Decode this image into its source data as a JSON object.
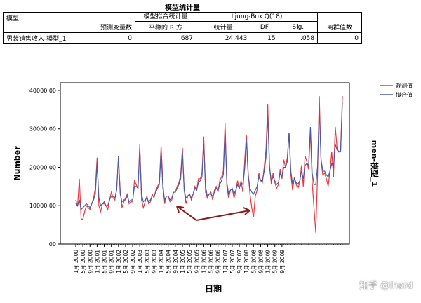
{
  "table": {
    "title": "模型统计量",
    "headers": {
      "model": "模型",
      "predictors": "预测变量数",
      "fit_group": "模型拟合统计量",
      "stationary_r2": "平稳的 R 方",
      "ljung_group": "Ljung-Box Q(18)",
      "statistic": "统计量",
      "df": "DF",
      "sig": "Sig.",
      "outliers": "离群值数"
    },
    "row": {
      "model": "男装销售收入-模型_1",
      "predictors": "0",
      "stationary_r2": ".687",
      "statistic": "24.443",
      "df": "15",
      "sig": ".058",
      "outliers": "0"
    }
  },
  "chart_data": {
    "type": "line",
    "ylabel": "Number",
    "xlabel": "日期",
    "right_label": "men-模型_1",
    "ylim": [
      0,
      42000
    ],
    "yticks": [
      "40000.00",
      "30000.00",
      "20000.00",
      "10000.00",
      ".00"
    ],
    "xticks": [
      "1月 2000",
      "5月 2000",
      "9月 2000",
      "1月 2001",
      "5月 2001",
      "9月 2001",
      "1月 2002",
      "5月 2002",
      "9月 2002",
      "1月 2003",
      "5月 2003",
      "9月 2003",
      "1月 2004",
      "5月 2004",
      "9月 2004",
      "1月 2005",
      "5月 2005",
      "9月 2005",
      "1月 2006",
      "5月 2006",
      "9月 2006",
      "1月 2007",
      "5月 2007",
      "9月 2007",
      "1月 2008",
      "5月 2008",
      "9月 2008",
      "1月 2009",
      "5月 2009",
      "9月 2009"
    ],
    "legend_position": "top-right",
    "series": [
      {
        "name": "观测值",
        "color": "#e8393f",
        "values": [
          11500,
          9800,
          17000,
          6500,
          6500,
          8500,
          10000,
          9500,
          9000,
          10500,
          12000,
          14500,
          22500,
          10000,
          8500,
          10500,
          10500,
          10000,
          9000,
          11500,
          13500,
          12000,
          11500,
          14500,
          22000,
          14000,
          9500,
          11000,
          12000,
          13000,
          10500,
          11000,
          11000,
          16500,
          15500,
          14500,
          26000,
          11500,
          9500,
          11000,
          12500,
          10500,
          11000,
          13000,
          12000,
          14000,
          15000,
          16000,
          25500,
          16000,
          10500,
          12500,
          12500,
          11000,
          11500,
          13500,
          13500,
          15000,
          16000,
          18000,
          25000,
          14000,
          10500,
          12500,
          13000,
          11500,
          13000,
          15000,
          14000,
          17000,
          17000,
          18500,
          28000,
          13500,
          12000,
          13000,
          13500,
          11500,
          14000,
          15000,
          13500,
          16500,
          17500,
          19000,
          31500,
          15000,
          12000,
          14000,
          14500,
          12000,
          13500,
          16500,
          14500,
          16500,
          13500,
          21500,
          28500,
          18500,
          13000,
          9500,
          7000,
          12500,
          14000,
          18500,
          16500,
          16000,
          20000,
          24500,
          36500,
          20500,
          15500,
          18500,
          16000,
          14500,
          15500,
          19500,
          17000,
          22000,
          20000,
          22500,
          29000,
          18000,
          14000,
          17500,
          15500,
          14500,
          16000,
          20500,
          15000,
          23000,
          21500,
          19500,
          29500,
          16000,
          9500,
          3000,
          17500,
          38500,
          21500,
          18000,
          18500,
          17000,
          15000,
          19000,
          24000,
          17500,
          30500,
          25000,
          24000,
          24500,
          38500
        ],
        "row": 0
      },
      {
        "name": "拟合值",
        "color": "#4a5ca8",
        "values": [
          10500,
          10000,
          11500,
          9000,
          9500,
          10000,
          10500,
          10000,
          9500,
          10500,
          11500,
          13000,
          21000,
          12000,
          10000,
          10500,
          11000,
          10000,
          10000,
          11500,
          12500,
          12500,
          12000,
          14000,
          23000,
          13000,
          11000,
          11500,
          11500,
          12500,
          11000,
          11500,
          11500,
          15000,
          15000,
          14500,
          24500,
          13000,
          11000,
          11500,
          12000,
          11000,
          11500,
          12500,
          12500,
          13500,
          14500,
          15500,
          24000,
          14500,
          11500,
          12500,
          12500,
          11500,
          12000,
          13500,
          13500,
          14500,
          15500,
          17000,
          24000,
          14000,
          12000,
          12500,
          13000,
          12000,
          13000,
          14500,
          14000,
          16000,
          16500,
          17500,
          26000,
          15000,
          12500,
          13000,
          13000,
          12500,
          13500,
          14500,
          14000,
          15500,
          16500,
          18000,
          29500,
          16000,
          13000,
          14000,
          14500,
          13000,
          14000,
          15500,
          14500,
          16000,
          15500,
          19500,
          27000,
          18000,
          14500,
          13500,
          13000,
          14000,
          15000,
          17500,
          16500,
          16500,
          19000,
          22500,
          33500,
          20000,
          16500,
          17500,
          16500,
          15500,
          16000,
          18500,
          17500,
          20000,
          20000,
          21500,
          29000,
          19000,
          15500,
          17000,
          16000,
          15500,
          16500,
          19000,
          17000,
          20500,
          21000,
          20500,
          30500,
          18500,
          15500,
          15500,
          20000,
          35000,
          22000,
          19000,
          19000,
          18000,
          17500,
          19000,
          21000,
          20000,
          26000,
          24500,
          24000,
          24000,
          37000
        ]
      }
    ]
  }
}
